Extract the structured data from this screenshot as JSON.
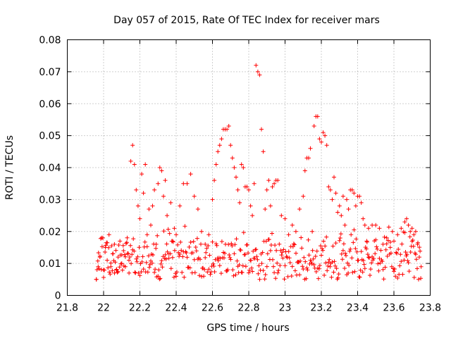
{
  "chart_data": {
    "type": "scatter",
    "title": "Day 057 of 2015, Rate Of TEC Index for receiver mars",
    "xlabel": "GPS time / hours",
    "ylabel": "ROTI / TECUs",
    "xlim": [
      21.8,
      23.8
    ],
    "ylim": [
      0,
      0.08
    ],
    "xticks": [
      "21.8",
      "22",
      "22.2",
      "22.4",
      "22.6",
      "22.8",
      "23",
      "23.2",
      "23.4",
      "23.6",
      "23.8"
    ],
    "yticks": [
      "0",
      "0.01",
      "0.02",
      "0.03",
      "0.04",
      "0.05",
      "0.06",
      "0.07",
      "0.08"
    ],
    "grid": true,
    "marker": "+",
    "color": "#ff0000",
    "series": [
      {
        "name": "ROTI",
        "points": [
          [
            21.96,
            0.005
          ],
          [
            21.97,
            0.009
          ],
          [
            21.98,
            0.012
          ],
          [
            21.99,
            0.018
          ],
          [
            22.0,
            0.008
          ],
          [
            22.01,
            0.015
          ],
          [
            22.02,
            0.011
          ],
          [
            22.03,
            0.019
          ],
          [
            22.04,
            0.009
          ],
          [
            22.05,
            0.013
          ],
          [
            22.06,
            0.016
          ],
          [
            22.07,
            0.008
          ],
          [
            22.08,
            0.012
          ],
          [
            22.09,
            0.017
          ],
          [
            22.1,
            0.01
          ],
          [
            22.11,
            0.014
          ],
          [
            22.12,
            0.009
          ],
          [
            22.13,
            0.018
          ],
          [
            22.14,
            0.011
          ],
          [
            22.15,
            0.042
          ],
          [
            22.16,
            0.047
          ],
          [
            22.17,
            0.041
          ],
          [
            22.18,
            0.033
          ],
          [
            22.19,
            0.028
          ],
          [
            22.2,
            0.024
          ],
          [
            22.21,
            0.038
          ],
          [
            22.22,
            0.032
          ],
          [
            22.23,
            0.041
          ],
          [
            22.24,
            0.019
          ],
          [
            22.25,
            0.027
          ],
          [
            22.26,
            0.022
          ],
          [
            22.27,
            0.028
          ],
          [
            22.28,
            0.033
          ],
          [
            22.29,
            0.016
          ],
          [
            22.3,
            0.035
          ],
          [
            22.31,
            0.04
          ],
          [
            22.32,
            0.039
          ],
          [
            22.33,
            0.031
          ],
          [
            22.34,
            0.036
          ],
          [
            22.35,
            0.025
          ],
          [
            22.36,
            0.013
          ],
          [
            22.37,
            0.029
          ],
          [
            22.38,
            0.017
          ],
          [
            22.39,
            0.021
          ],
          [
            22.4,
            0.019
          ],
          [
            22.42,
            0.028
          ],
          [
            22.44,
            0.035
          ],
          [
            22.46,
            0.035
          ],
          [
            22.48,
            0.038
          ],
          [
            22.5,
            0.031
          ],
          [
            22.52,
            0.027
          ],
          [
            22.54,
            0.02
          ],
          [
            22.56,
            0.016
          ],
          [
            22.58,
            0.019
          ],
          [
            22.6,
            0.03
          ],
          [
            22.61,
            0.036
          ],
          [
            22.62,
            0.041
          ],
          [
            22.63,
            0.045
          ],
          [
            22.64,
            0.047
          ],
          [
            22.65,
            0.049
          ],
          [
            22.66,
            0.052
          ],
          [
            22.67,
            0.052
          ],
          [
            22.68,
            0.052
          ],
          [
            22.69,
            0.053
          ],
          [
            22.7,
            0.047
          ],
          [
            22.71,
            0.043
          ],
          [
            22.72,
            0.04
          ],
          [
            22.73,
            0.037
          ],
          [
            22.74,
            0.033
          ],
          [
            22.75,
            0.029
          ],
          [
            22.76,
            0.041
          ],
          [
            22.77,
            0.04
          ],
          [
            22.78,
            0.034
          ],
          [
            22.79,
            0.034
          ],
          [
            22.8,
            0.033
          ],
          [
            22.81,
            0.028
          ],
          [
            22.82,
            0.025
          ],
          [
            22.83,
            0.035
          ],
          [
            22.84,
            0.072
          ],
          [
            22.85,
            0.07
          ],
          [
            22.86,
            0.069
          ],
          [
            22.87,
            0.052
          ],
          [
            22.88,
            0.045
          ],
          [
            22.89,
            0.027
          ],
          [
            22.9,
            0.033
          ],
          [
            22.91,
            0.036
          ],
          [
            22.92,
            0.028
          ],
          [
            22.93,
            0.034
          ],
          [
            22.94,
            0.035
          ],
          [
            22.95,
            0.036
          ],
          [
            22.96,
            0.036
          ],
          [
            22.98,
            0.025
          ],
          [
            23.0,
            0.024
          ],
          [
            23.02,
            0.019
          ],
          [
            23.04,
            0.022
          ],
          [
            23.06,
            0.02
          ],
          [
            23.08,
            0.027
          ],
          [
            23.1,
            0.031
          ],
          [
            23.11,
            0.039
          ],
          [
            23.12,
            0.043
          ],
          [
            23.13,
            0.043
          ],
          [
            23.14,
            0.046
          ],
          [
            23.15,
            0.02
          ],
          [
            23.16,
            0.053
          ],
          [
            23.17,
            0.056
          ],
          [
            23.18,
            0.056
          ],
          [
            23.19,
            0.049
          ],
          [
            23.2,
            0.048
          ],
          [
            23.21,
            0.051
          ],
          [
            23.22,
            0.05
          ],
          [
            23.23,
            0.047
          ],
          [
            23.24,
            0.034
          ],
          [
            23.25,
            0.033
          ],
          [
            23.26,
            0.03
          ],
          [
            23.27,
            0.037
          ],
          [
            23.28,
            0.032
          ],
          [
            23.29,
            0.026
          ],
          [
            23.3,
            0.028
          ],
          [
            23.31,
            0.025
          ],
          [
            23.32,
            0.031
          ],
          [
            23.33,
            0.022
          ],
          [
            23.34,
            0.03
          ],
          [
            23.35,
            0.027
          ],
          [
            23.36,
            0.033
          ],
          [
            23.37,
            0.033
          ],
          [
            23.38,
            0.032
          ],
          [
            23.39,
            0.028
          ],
          [
            23.4,
            0.031
          ],
          [
            23.41,
            0.031
          ],
          [
            23.42,
            0.029
          ],
          [
            23.43,
            0.024
          ],
          [
            23.44,
            0.022
          ],
          [
            23.45,
            0.017
          ],
          [
            23.46,
            0.021
          ],
          [
            23.48,
            0.022
          ],
          [
            23.5,
            0.022
          ],
          [
            23.52,
            0.021
          ],
          [
            23.54,
            0.016
          ],
          [
            23.56,
            0.018
          ],
          [
            23.58,
            0.015
          ],
          [
            23.6,
            0.017
          ],
          [
            23.62,
            0.019
          ],
          [
            23.64,
            0.021
          ],
          [
            23.66,
            0.023
          ],
          [
            23.67,
            0.024
          ],
          [
            23.68,
            0.022
          ],
          [
            23.69,
            0.02
          ],
          [
            23.7,
            0.021
          ],
          [
            23.71,
            0.019
          ],
          [
            23.72,
            0.02
          ],
          [
            23.73,
            0.016
          ],
          [
            23.74,
            0.012
          ],
          [
            23.75,
            0.009
          ]
        ]
      }
    ]
  }
}
